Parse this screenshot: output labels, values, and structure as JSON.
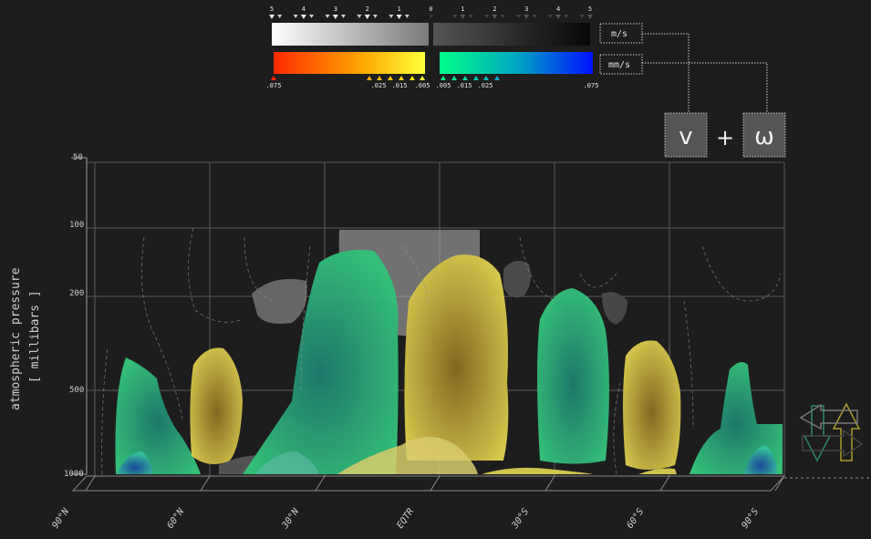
{
  "legend": {
    "gray_ticks": [
      "5",
      "4",
      "3",
      "2",
      "1",
      "0",
      "1",
      "2",
      "3",
      "4",
      "5"
    ],
    "gray_unit": "m/s",
    "color_unit": "mm/s",
    "color_ticks_left": [
      ".075",
      ".025",
      ".015",
      ".005"
    ],
    "color_ticks_right": [
      ".005",
      ".015",
      ".025",
      ".075"
    ],
    "colors": {
      "warm_start": "#ff2a00",
      "warm_mid": "#ffaa00",
      "warm_end": "#ffff33",
      "cool_start": "#00ff88",
      "cool_mid": "#00a0c0",
      "cool_end": "#0010ff"
    }
  },
  "operator": {
    "v_label": "v",
    "plus": "+",
    "omega_label": "ω"
  },
  "chart_data": {
    "type": "heatmap",
    "ylabel": "atmospheric pressure",
    "ylabel_units": "[ millibars ]",
    "y_ticks": [
      "50",
      "100",
      "200",
      "500",
      "1000"
    ],
    "x_ticks": [
      "90°N",
      "60°N",
      "30°N",
      "EQTR",
      "30°S",
      "60°S",
      "90°S"
    ],
    "y_scale": "log",
    "ylim": [
      1000,
      50
    ],
    "colors": {
      "yellow": "#d8c840",
      "green": "#2fa56a",
      "gray": "#6e6e6e"
    }
  },
  "icons": {
    "arrows": "direction-arrows-icon"
  }
}
